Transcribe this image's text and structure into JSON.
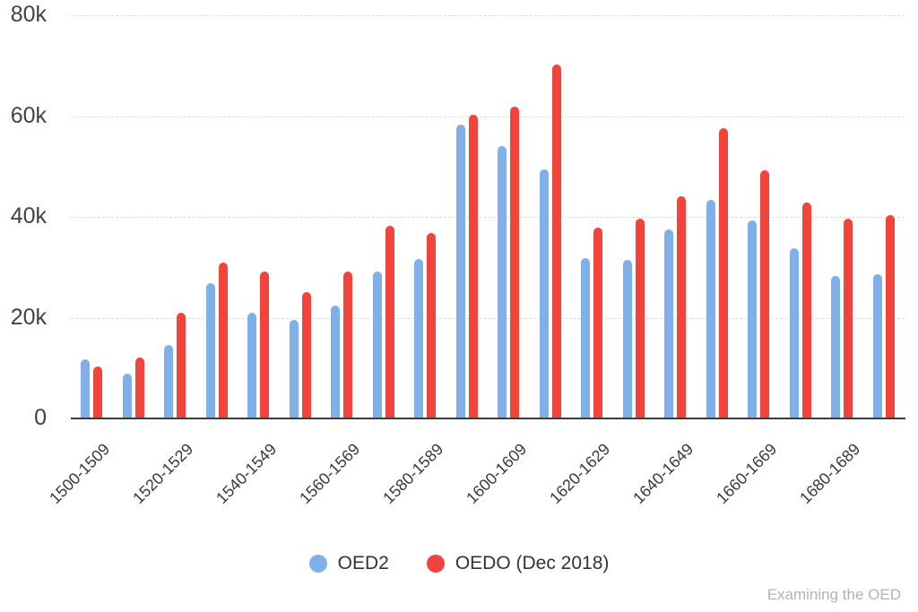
{
  "watermark": "Examining the OED",
  "colors": {
    "series_blue": "#7FB0E9",
    "series_red": "#F3443C",
    "axis_line": "#3c3c3c",
    "gridline": "#dcdcdc",
    "y_tick_label": "#424242",
    "x_tick_label": "#3a3a3a",
    "legend_text": "#333333",
    "watermark_text": "#b3b3b3"
  },
  "chart_data": {
    "type": "bar",
    "title": "",
    "categories": [
      "1500-1509",
      "",
      "1520-1529",
      "",
      "1540-1549",
      "",
      "1560-1569",
      "",
      "1580-1589",
      "",
      "1600-1609",
      "",
      "1620-1629",
      "",
      "1640-1649",
      "",
      "1660-1669",
      "",
      "1680-1689",
      ""
    ],
    "series": [
      {
        "name": "OED2",
        "color": "#7FB0E9",
        "values": [
          11800,
          8800,
          14500,
          26900,
          21000,
          19600,
          22400,
          29100,
          31600,
          58300,
          54000,
          49500,
          31800,
          31400,
          37500,
          43400,
          39300,
          33800,
          28300,
          28700
        ]
      },
      {
        "name": "OEDO (Dec 2018)",
        "color": "#F3443C",
        "values": [
          10300,
          12100,
          20900,
          31000,
          29200,
          25100,
          29200,
          38200,
          36800,
          60300,
          61900,
          70200,
          37900,
          39600,
          44100,
          57600,
          49200,
          42800,
          39600,
          40400
        ]
      }
    ],
    "ylim": [
      0,
      80000
    ],
    "y_ticks": [
      {
        "value": 0,
        "label": "0"
      },
      {
        "value": 20000,
        "label": "20k"
      },
      {
        "value": 40000,
        "label": "40k"
      },
      {
        "value": 60000,
        "label": "60k"
      },
      {
        "value": 80000,
        "label": "80k"
      }
    ],
    "grid": true,
    "legend_position": "bottom"
  }
}
